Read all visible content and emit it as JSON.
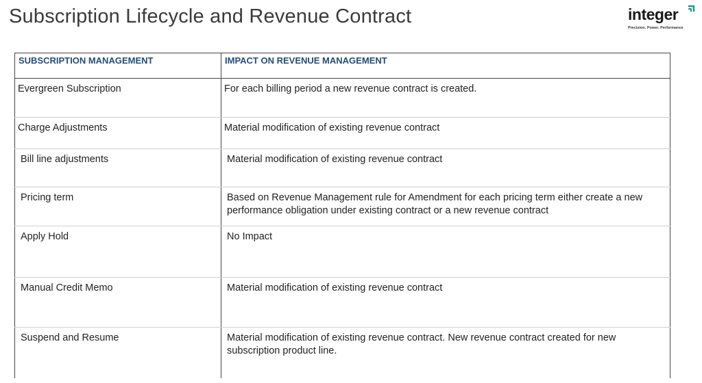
{
  "header": {
    "title": "Subscription Lifecycle and Revenue Contract"
  },
  "logo": {
    "name": "integer",
    "tagline": "Precision. Power. Performance"
  },
  "table": {
    "headers": [
      "SUBSCRIPTION MANAGEMENT",
      "IMPACT ON REVENUE MANAGEMENT"
    ],
    "rows": [
      [
        "Evergreen Subscription",
        "For each billing period a new revenue contract is created."
      ],
      [
        "Charge Adjustments",
        "Material modification of existing revenue contract"
      ],
      [
        "Bill line adjustments",
        "Material modification of existing revenue contract"
      ],
      [
        "Pricing term",
        "Based on Revenue Management rule for Amendment for each pricing term either create a new performance obligation under existing contract or a new revenue contract"
      ],
      [
        "Apply Hold",
        "No Impact"
      ],
      [
        "Manual Credit Memo",
        "Material modification of existing revenue contract"
      ],
      [
        "Suspend and Resume",
        "Material modification of existing revenue contract. New revenue contract created for new subscription product line."
      ]
    ]
  }
}
